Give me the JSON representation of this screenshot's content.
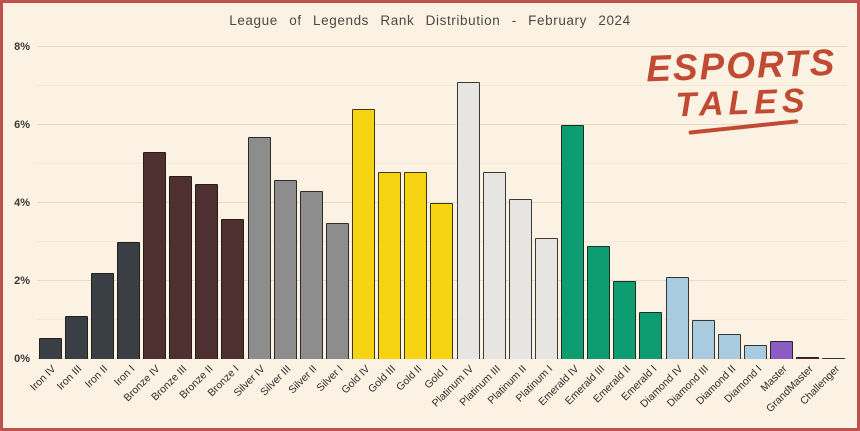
{
  "window": {
    "background_color": "#fcf2e4",
    "border_color": "#c0504d"
  },
  "logo": {
    "line1": "ESPORTS",
    "line2": "TALES",
    "color": "#c14a33"
  },
  "chart_data": {
    "type": "bar",
    "title": "League of Legends Rank Distribution - February 2024",
    "xlabel": "",
    "ylabel": "",
    "ylim": [
      0,
      8
    ],
    "y_ticks": [
      {
        "value": 0,
        "label": "0%"
      },
      {
        "value": 2,
        "label": "2%"
      },
      {
        "value": 4,
        "label": "4%"
      },
      {
        "value": 6,
        "label": "6%"
      },
      {
        "value": 8,
        "label": "8%"
      }
    ],
    "grid": {
      "orientation": "horizontal",
      "major_step_pct": 2,
      "minor_step_pct": 1
    },
    "legend_position": "none",
    "categories": [
      "Iron IV",
      "Iron III",
      "Iron II",
      "Iron I",
      "Bronze IV",
      "Bronze III",
      "Bronze II",
      "Bronze I",
      "Silver IV",
      "Silver III",
      "Silver II",
      "Silver I",
      "Gold IV",
      "Gold III",
      "Gold II",
      "Gold I",
      "Platinum IV",
      "Platinum III",
      "Platinum II",
      "Platinum I",
      "Emerald IV",
      "Emerald III",
      "Emerald II",
      "Emerald I",
      "Diamond IV",
      "Diamond III",
      "Diamond II",
      "Diamond I",
      "Master",
      "GrandMaster",
      "Challenger"
    ],
    "values": [
      0.55,
      1.1,
      2.2,
      3.0,
      5.3,
      4.7,
      4.5,
      3.6,
      5.7,
      4.6,
      4.3,
      3.5,
      6.4,
      4.8,
      4.8,
      4.0,
      7.1,
      4.8,
      4.1,
      3.1,
      6.0,
      2.9,
      2.0,
      1.2,
      2.1,
      1.0,
      0.65,
      0.35,
      0.45,
      0.06,
      0.03
    ],
    "bar_colors": [
      "#3a3e45",
      "#3a3e45",
      "#3a3e45",
      "#3a3e45",
      "#4e3030",
      "#4e3030",
      "#4e3030",
      "#4e3030",
      "#8d8d8d",
      "#8d8d8d",
      "#8d8d8d",
      "#8d8d8d",
      "#f6d411",
      "#f6d411",
      "#f6d411",
      "#f6d411",
      "#e7e5e1",
      "#e7e5e1",
      "#e7e5e1",
      "#e7e5e1",
      "#0e9d71",
      "#0e9d71",
      "#0e9d71",
      "#0e9d71",
      "#a9cbdf",
      "#a9cbdf",
      "#a9cbdf",
      "#a9cbdf",
      "#8b5cc1",
      "#5c2226",
      "#cdbb9e"
    ],
    "tier_color_legend": {
      "Iron": "#3a3e45",
      "Bronze": "#4e3030",
      "Silver": "#8d8d8d",
      "Gold": "#f6d411",
      "Platinum": "#e7e5e1",
      "Emerald": "#0e9d71",
      "Diamond": "#a9cbdf",
      "Master": "#8b5cc1",
      "GrandMaster": "#5c2226",
      "Challenger": "#cdbb9e"
    }
  }
}
